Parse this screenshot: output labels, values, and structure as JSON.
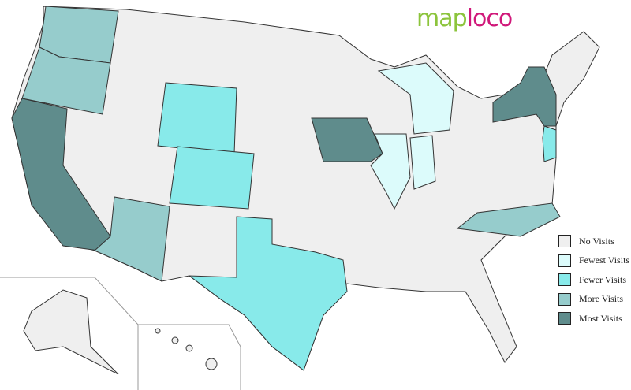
{
  "logo": {
    "part1": "map",
    "part2": "loco"
  },
  "colors": {
    "none": "#efefef",
    "fewest": "#dcfbfb",
    "fewer": "#88eaea",
    "more": "#96cccc",
    "most": "#5f8c8c"
  },
  "legend": [
    {
      "label": "No Visits",
      "level": "none"
    },
    {
      "label": "Fewest Visits",
      "level": "fewest"
    },
    {
      "label": "Fewer Visits",
      "level": "fewer"
    },
    {
      "label": "More Visits",
      "level": "more"
    },
    {
      "label": "Most Visits",
      "level": "most"
    }
  ],
  "states": {
    "Washington": "more",
    "Oregon": "more",
    "California": "most",
    "Arizona": "more",
    "Wyoming": "fewer",
    "Colorado": "fewer",
    "Texas": "fewer",
    "Iowa": "most",
    "Illinois": "fewest",
    "Indiana": "fewest",
    "Michigan": "fewest",
    "New York": "most",
    "New Jersey": "fewer",
    "North Carolina": "more"
  }
}
